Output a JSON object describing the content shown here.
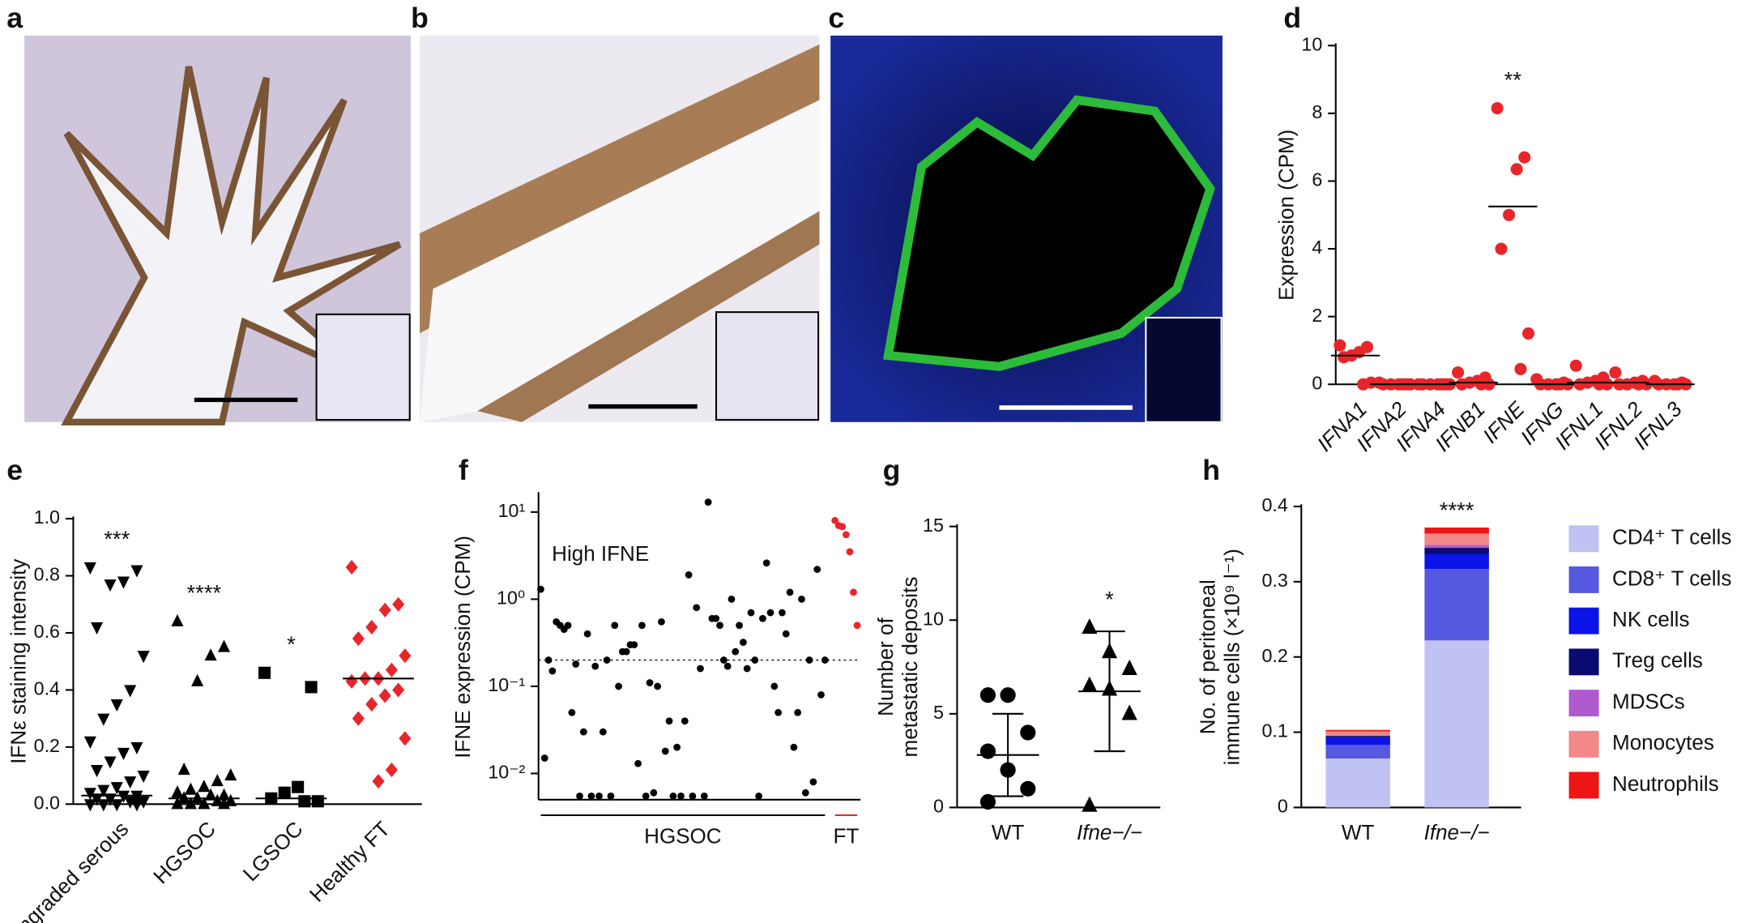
{
  "image_panels": [
    {
      "label": "a"
    },
    {
      "label": "b"
    },
    {
      "label": "c"
    }
  ],
  "chart_data": [
    {
      "type": "strip",
      "panel_label": "d",
      "y_label": [
        "Expression (CPM)"
      ],
      "categories": [
        "IFNA1",
        "IFNA2",
        "IFNA4",
        "IFNB1",
        "IFNE",
        "IFNG",
        "IFNL1",
        "IFNL2",
        "IFNL3"
      ],
      "values": [
        [
          1.15,
          1.1,
          0.95,
          0.85,
          0.8,
          0.05,
          0
        ],
        [
          0.05,
          0,
          0,
          0,
          0,
          0,
          0
        ],
        [
          0,
          0,
          0,
          0,
          0,
          0,
          0
        ],
        [
          0.35,
          0.2,
          0.1,
          0.05,
          0,
          0,
          0
        ],
        [
          8.15,
          6.7,
          6.35,
          5.0,
          4.0,
          1.5,
          0.45
        ],
        [
          0.15,
          0.05,
          0,
          0,
          0,
          0,
          0
        ],
        [
          0.55,
          0.2,
          0.1,
          0.05,
          0,
          0,
          0
        ],
        [
          0.35,
          0.1,
          0.05,
          0,
          0,
          0,
          0
        ],
        [
          0.1,
          0.05,
          0,
          0,
          0,
          0,
          0
        ]
      ],
      "medians": [
        0.85,
        0,
        0,
        0.05,
        5.25,
        0,
        0.05,
        0.05,
        0
      ],
      "annotations": [
        null,
        null,
        null,
        null,
        "**",
        null,
        null,
        null,
        null
      ],
      "color": "#e8262a",
      "markers": [
        "circle",
        "circle",
        "circle",
        "circle",
        "circle",
        "circle",
        "circle",
        "circle",
        "circle"
      ],
      "ylim": [
        0,
        10
      ],
      "yticks": [
        0,
        2,
        4,
        6,
        8,
        10
      ]
    },
    {
      "type": "strip",
      "panel_label": "e",
      "y_label": [
        "IFNε staining intensity"
      ],
      "categories": [
        "Ungraded serous",
        "HGSOC",
        "LGSOC",
        "Healthy FT"
      ],
      "values": [
        [
          0.83,
          0.82,
          0.78,
          0.77,
          0.62,
          0.52,
          0.4,
          0.35,
          0.3,
          0.22,
          0.2,
          0.18,
          0.15,
          0.12,
          0.1,
          0.08,
          0.06,
          0.05,
          0.04,
          0.03,
          0.03,
          0.02,
          0.02,
          0.01,
          0.01,
          0,
          0,
          0,
          0
        ],
        [
          0.64,
          0.55,
          0.52,
          0.43,
          0.12,
          0.1,
          0.08,
          0.06,
          0.05,
          0.04,
          0.03,
          0.03,
          0.02,
          0.02,
          0.01,
          0.01,
          0,
          0,
          0,
          0
        ],
        [
          0.46,
          0.41,
          0.06,
          0.04,
          0.02,
          0.01,
          0.01
        ],
        [
          0.83,
          0.7,
          0.68,
          0.62,
          0.58,
          0.52,
          0.47,
          0.44,
          0.44,
          0.43,
          0.4,
          0.38,
          0.35,
          0.3,
          0.23,
          0.12,
          0.08
        ]
      ],
      "medians": [
        0.03,
        0.02,
        0.02,
        0.44
      ],
      "annotations": [
        "***",
        "****",
        "*",
        null
      ],
      "colors": [
        "#000000",
        "#000000",
        "#000000",
        "#e8262a"
      ],
      "markers": [
        "triangle-down",
        "triangle-up",
        "square",
        "diamond"
      ],
      "ylim": [
        0,
        1
      ],
      "yticks": [
        {
          "value": 0,
          "label": "0.0"
        },
        0.2,
        0.4,
        0.6,
        0.8,
        {
          "value": 1,
          "label": "1.0"
        }
      ]
    },
    {
      "type": "scatter",
      "panel_label": "f",
      "y_label": [
        "IFNE expression (CPM)"
      ],
      "annotation": "High IFNE",
      "log_y": true,
      "threshold": 0.2,
      "series": [
        {
          "name": "HGSOC",
          "color": "#000000",
          "values": [
            1.3,
            0.015,
            0.2,
            0.15,
            0.55,
            0.5,
            0.45,
            0.5,
            0.05,
            0.18,
            0.0055,
            0.03,
            0.4,
            0.0055,
            0.17,
            0.0055,
            0.03,
            0.2,
            0.0055,
            0.5,
            0.1,
            0.25,
            0.25,
            0.3,
            0.3,
            0.013,
            0.5,
            0.0055,
            0.11,
            0.006,
            0.1,
            0.55,
            0.018,
            0.04,
            0.0055,
            0.02,
            0.0055,
            0.04,
            1.9,
            0.0055,
            0.8,
            0.16,
            0.0055,
            13,
            0.6,
            0.6,
            0.5,
            0.2,
            0.17,
            1.0,
            0.25,
            0.5,
            0.32,
            0.16,
            0.7,
            0.2,
            0.0055,
            0.6,
            2.6,
            0.7,
            0.1,
            0.05,
            0.7,
            0.4,
            1.2,
            0.02,
            0.05,
            1.0,
            0.006,
            0.2,
            0.008,
            2.2,
            0.08,
            0.2
          ]
        },
        {
          "name": "FT",
          "color": "#e8262a",
          "values": [
            8,
            7,
            6.8,
            5.5,
            3.5,
            1.2,
            0.5
          ]
        }
      ],
      "ylim": [
        0.005,
        16
      ],
      "yticks": [
        {
          "value": 0.01,
          "label": "10⁻²"
        },
        {
          "value": 0.1,
          "label": "10⁻¹"
        },
        {
          "value": 1,
          "label": "10⁰"
        },
        {
          "value": 10,
          "label": "10¹"
        }
      ]
    },
    {
      "type": "dot",
      "panel_label": "g",
      "y_label": [
        "Number of",
        "metastatic deposits"
      ],
      "categories": [
        "WT",
        "Ifne−/−"
      ],
      "values": [
        [
          6,
          6,
          4,
          3,
          2,
          1,
          0.3
        ],
        [
          9.6,
          8.3,
          7.4,
          6.5,
          6.3,
          5.0,
          0.1
        ]
      ],
      "means": [
        2.8,
        6.2
      ],
      "sd": [
        2.2,
        3.2
      ],
      "annotations": [
        null,
        "*"
      ],
      "markers": [
        "circle",
        "triangle-up"
      ],
      "color": "#000000",
      "ylim": [
        0,
        15
      ],
      "yticks": [
        0,
        5,
        10,
        15
      ]
    },
    {
      "type": "stacked-bar",
      "panel_label": "h",
      "y_label": [
        "No. of peritoneal",
        "immune cells (×10⁹ l⁻¹)"
      ],
      "categories": [
        "WT",
        "Ifne−/−"
      ],
      "annotations": [
        null,
        "****"
      ],
      "series": [
        {
          "name": "CD4⁺ T cells",
          "color": "#c0c2f3",
          "values": [
            0.065,
            0.222
          ]
        },
        {
          "name": "CD8⁺ T cells",
          "color": "#5559e0",
          "values": [
            0.018,
            0.095
          ]
        },
        {
          "name": "NK cells",
          "color": "#0a14e8",
          "values": [
            0.01,
            0.02
          ]
        },
        {
          "name": "Treg cells",
          "color": "#0a0a70",
          "values": [
            0.002,
            0.008
          ]
        },
        {
          "name": "MDSCs",
          "color": "#b05ad0",
          "values": [
            0.001,
            0.004
          ]
        },
        {
          "name": "Monocytes",
          "color": "#f28888",
          "values": [
            0.005,
            0.015
          ]
        },
        {
          "name": "Neutrophils",
          "color": "#ee1515",
          "values": [
            0.002,
            0.008
          ]
        }
      ],
      "ylim": [
        0,
        0.4
      ],
      "yticks": [
        0,
        0.1,
        0.2,
        0.3,
        0.4
      ]
    }
  ]
}
